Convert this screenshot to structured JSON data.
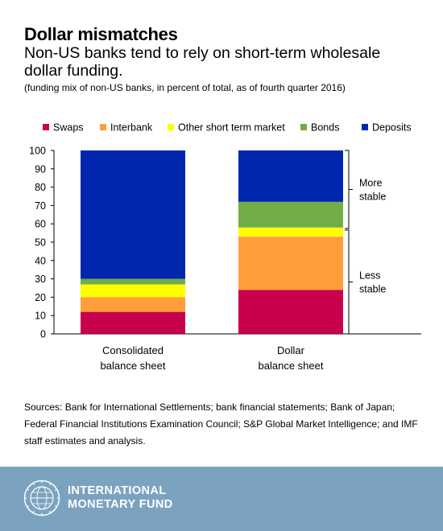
{
  "header": {
    "title": "Dollar mismatches",
    "subtitle": "Non-US banks tend to rely on short-term wholesale dollar funding.",
    "note": "(funding mix of non-US banks, in percent of total, as of fourth quarter 2016)"
  },
  "chart_data": {
    "type": "bar",
    "stacked": true,
    "categories": [
      [
        "Consolidated",
        "balance sheet"
      ],
      [
        "Dollar",
        "balance sheet"
      ]
    ],
    "series": [
      {
        "name": "Swaps",
        "color": "#c8004e",
        "values": [
          12,
          24
        ]
      },
      {
        "name": "Interbank",
        "color": "#ff9e3b",
        "values": [
          8,
          29
        ]
      },
      {
        "name": "Other short term market",
        "color": "#ffff00",
        "values": [
          7,
          5
        ]
      },
      {
        "name": "Bonds",
        "color": "#70ad47",
        "values": [
          3,
          14
        ]
      },
      {
        "name": "Deposits",
        "color": "#0026b0",
        "values": [
          70,
          28
        ]
      }
    ],
    "ylim": [
      0,
      100
    ],
    "yticks": [
      0,
      10,
      20,
      30,
      40,
      50,
      60,
      70,
      80,
      90,
      100
    ],
    "legend_position": "top",
    "grid": false,
    "annotations": [
      {
        "label": [
          "More",
          "stable"
        ],
        "range": [
          57,
          100
        ]
      },
      {
        "label": [
          "Less",
          "stable"
        ],
        "range": [
          0,
          57
        ]
      }
    ]
  },
  "sources": "Sources: Bank for International Settlements; bank financial statements; Bank of Japan; Federal Financial Institutions Examination Council; S&P Global Market Intelligence; and IMF staff estimates and analysis.",
  "footer": {
    "org_line1": "INTERNATIONAL",
    "org_line2": "MONETARY FUND",
    "background": "#7ba3c0",
    "logo": "imf-seal-icon",
    "logo_text": "INTERNATIONAL MONETARY FUND"
  }
}
